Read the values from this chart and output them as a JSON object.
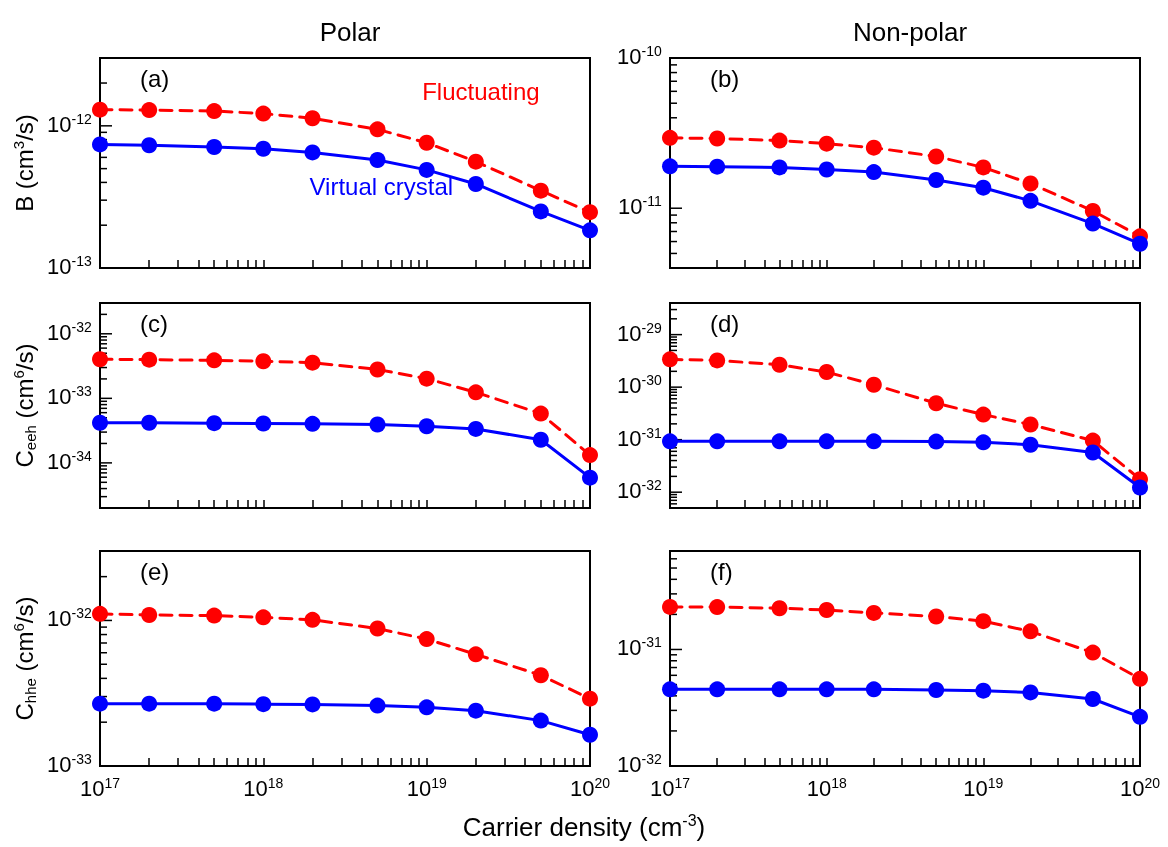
{
  "chart_data": [
    {
      "type": "line",
      "title": "Polar",
      "ylabel": "B (cm$^{3}$/s)",
      "annotations": [
        "(a)"
      ],
      "log": "xy",
      "tick_labels": "y",
      "x": [
        1e+17,
        2e+17,
        5e+17,
        1e+18,
        2e+18,
        5e+18,
        1e+19,
        2e+19,
        5e+19,
        1e+20
      ],
      "series": [
        {
          "name": "Fluctuating",
          "color": "#ff0000",
          "line_style": "dashed",
          "marker": "circle",
          "values": [
            1.3e-12,
            1.29e-12,
            1.27e-12,
            1.22e-12,
            1.13e-12,
            9.45e-13,
            7.6e-13,
            5.6e-13,
            3.5e-13,
            2.47e-13
          ]
        },
        {
          "name": "Virtual crystal",
          "color": "#0000ff",
          "line_style": "solid",
          "marker": "circle",
          "values": [
            7.4e-13,
            7.3e-13,
            7.1e-13,
            6.9e-13,
            6.5e-13,
            5.75e-13,
            4.9e-13,
            3.9e-13,
            2.5e-13,
            1.84e-13
          ]
        }
      ],
      "xlim": [
        1e+17,
        1e+20
      ],
      "ylim": [
        1e-13,
        3e-12
      ],
      "xticks": [
        {
          "value": 1e+17,
          "label": null
        },
        {
          "value": 2e+17,
          "label": null
        },
        {
          "value": 3e+17,
          "label": null
        },
        {
          "value": 4e+17,
          "label": null
        },
        {
          "value": 5e+17,
          "label": null
        },
        {
          "value": 6e+17,
          "label": null
        },
        {
          "value": 7e+17,
          "label": null
        },
        {
          "value": 8e+17,
          "label": null
        },
        {
          "value": 9e+17,
          "label": null
        },
        {
          "value": 1e+18,
          "label": null
        },
        {
          "value": 2e+18,
          "label": null
        },
        {
          "value": 3e+18,
          "label": null
        },
        {
          "value": 4e+18,
          "label": null
        },
        {
          "value": 5e+18,
          "label": null
        },
        {
          "value": 6e+18,
          "label": null
        },
        {
          "value": 7e+18,
          "label": null
        },
        {
          "value": 8e+18,
          "label": null
        },
        {
          "value": 9e+18,
          "label": null
        },
        {
          "value": 1e+19,
          "label": null
        },
        {
          "value": 2e+19,
          "label": null
        },
        {
          "value": 3e+19,
          "label": null
        },
        {
          "value": 4e+19,
          "label": null
        },
        {
          "value": 5e+19,
          "label": null
        },
        {
          "value": 6e+19,
          "label": null
        },
        {
          "value": 7e+19,
          "label": null
        },
        {
          "value": 8e+19,
          "label": null
        },
        {
          "value": 9e+19,
          "label": null
        },
        {
          "value": 1e+20,
          "label": null
        }
      ],
      "yticks": [
        {
          "value": 1e-13,
          "label": "10$^{-13}$"
        },
        {
          "value": 2e-13,
          "label": null
        },
        {
          "value": 3e-13,
          "label": null
        },
        {
          "value": 4e-13,
          "label": null
        },
        {
          "value": 5e-13,
          "label": null
        },
        {
          "value": 6e-13,
          "label": null
        },
        {
          "value": 7e-13,
          "label": null
        },
        {
          "value": 8e-13,
          "label": null
        },
        {
          "value": 9e-13,
          "label": null
        },
        {
          "value": 1e-12,
          "label": "10$^{-12}$"
        },
        {
          "value": 2e-12,
          "label": null
        }
      ]
    },
    {
      "type": "line",
      "title": "Non-polar",
      "annotations": [
        "(b)"
      ],
      "log": "xy",
      "tick_labels": "y",
      "x": [
        1e+17,
        2e+17,
        5e+17,
        1e+18,
        2e+18,
        5e+18,
        1e+19,
        2e+19,
        5e+19,
        1e+20
      ],
      "series": [
        {
          "color": "#ff0000",
          "line_style": "dashed",
          "marker": "circle",
          "values": [
            2.94e-11,
            2.91e-11,
            2.82e-11,
            2.69e-11,
            2.53e-11,
            2.21e-11,
            1.87e-11,
            1.46e-11,
            9.6e-12,
            6.5e-12
          ]
        },
        {
          "color": "#0000ff",
          "line_style": "solid",
          "marker": "circle",
          "values": [
            1.9e-11,
            1.89e-11,
            1.87e-11,
            1.81e-11,
            1.74e-11,
            1.54e-11,
            1.37e-11,
            1.12e-11,
            7.9e-12,
            5.8e-12
          ]
        }
      ],
      "xlim": [
        1e+17,
        1e+20
      ],
      "ylim": [
        4e-12,
        1e-10
      ],
      "xticks": [
        {
          "value": 1e+17,
          "label": null
        },
        {
          "value": 2e+17,
          "label": null
        },
        {
          "value": 3e+17,
          "label": null
        },
        {
          "value": 4e+17,
          "label": null
        },
        {
          "value": 5e+17,
          "label": null
        },
        {
          "value": 6e+17,
          "label": null
        },
        {
          "value": 7e+17,
          "label": null
        },
        {
          "value": 8e+17,
          "label": null
        },
        {
          "value": 9e+17,
          "label": null
        },
        {
          "value": 1e+18,
          "label": null
        },
        {
          "value": 2e+18,
          "label": null
        },
        {
          "value": 3e+18,
          "label": null
        },
        {
          "value": 4e+18,
          "label": null
        },
        {
          "value": 5e+18,
          "label": null
        },
        {
          "value": 6e+18,
          "label": null
        },
        {
          "value": 7e+18,
          "label": null
        },
        {
          "value": 8e+18,
          "label": null
        },
        {
          "value": 9e+18,
          "label": null
        },
        {
          "value": 1e+19,
          "label": null
        },
        {
          "value": 2e+19,
          "label": null
        },
        {
          "value": 3e+19,
          "label": null
        },
        {
          "value": 4e+19,
          "label": null
        },
        {
          "value": 5e+19,
          "label": null
        },
        {
          "value": 6e+19,
          "label": null
        },
        {
          "value": 7e+19,
          "label": null
        },
        {
          "value": 8e+19,
          "label": null
        },
        {
          "value": 9e+19,
          "label": null
        },
        {
          "value": 1e+20,
          "label": null
        }
      ],
      "yticks": [
        {
          "value": 5e-12,
          "label": null
        },
        {
          "value": 6e-12,
          "label": null
        },
        {
          "value": 7e-12,
          "label": null
        },
        {
          "value": 8e-12,
          "label": null
        },
        {
          "value": 9e-12,
          "label": null
        },
        {
          "value": 1e-11,
          "label": "10$^{-11}$"
        },
        {
          "value": 2e-11,
          "label": null
        },
        {
          "value": 3e-11,
          "label": null
        },
        {
          "value": 4e-11,
          "label": null
        },
        {
          "value": 5e-11,
          "label": null
        },
        {
          "value": 6e-11,
          "label": null
        },
        {
          "value": 7e-11,
          "label": null
        },
        {
          "value": 8e-11,
          "label": null
        },
        {
          "value": 9e-11,
          "label": null
        },
        {
          "value": 1e-10,
          "label": "10$^{-10}$"
        }
      ]
    },
    {
      "type": "line",
      "ylabel": "C$_{eeh}$ (cm$^{6}$/s)",
      "annotations": [
        "(c)"
      ],
      "log": "xy",
      "tick_labels": "y",
      "x": [
        1e+17,
        2e+17,
        5e+17,
        1e+18,
        2e+18,
        5e+18,
        1e+19,
        2e+19,
        5e+19,
        1e+20
      ],
      "series": [
        {
          "color": "#ff0000",
          "line_style": "dashed",
          "marker": "circle",
          "values": [
            4.03e-33,
            3.97e-33,
            3.88e-33,
            3.75e-33,
            3.57e-33,
            2.8e-33,
            2.02e-33,
            1.24e-33,
            5.8e-34,
            1.32e-34
          ]
        },
        {
          "color": "#0000ff",
          "line_style": "solid",
          "marker": "circle",
          "values": [
            4.18e-34,
            4.18e-34,
            4.12e-34,
            4.08e-34,
            4.03e-34,
            3.94e-34,
            3.7e-34,
            3.36e-34,
            2.28e-34,
            5.9e-35
          ]
        }
      ],
      "xlim": [
        1e+17,
        1e+20
      ],
      "ylim": [
        2e-35,
        3e-32
      ],
      "xticks": [
        {
          "value": 1e+17,
          "label": null
        },
        {
          "value": 2e+17,
          "label": null
        },
        {
          "value": 3e+17,
          "label": null
        },
        {
          "value": 4e+17,
          "label": null
        },
        {
          "value": 5e+17,
          "label": null
        },
        {
          "value": 6e+17,
          "label": null
        },
        {
          "value": 7e+17,
          "label": null
        },
        {
          "value": 8e+17,
          "label": null
        },
        {
          "value": 9e+17,
          "label": null
        },
        {
          "value": 1e+18,
          "label": null
        },
        {
          "value": 2e+18,
          "label": null
        },
        {
          "value": 3e+18,
          "label": null
        },
        {
          "value": 4e+18,
          "label": null
        },
        {
          "value": 5e+18,
          "label": null
        },
        {
          "value": 6e+18,
          "label": null
        },
        {
          "value": 7e+18,
          "label": null
        },
        {
          "value": 8e+18,
          "label": null
        },
        {
          "value": 9e+18,
          "label": null
        },
        {
          "value": 1e+19,
          "label": null
        },
        {
          "value": 2e+19,
          "label": null
        },
        {
          "value": 3e+19,
          "label": null
        },
        {
          "value": 4e+19,
          "label": null
        },
        {
          "value": 5e+19,
          "label": null
        },
        {
          "value": 6e+19,
          "label": null
        },
        {
          "value": 7e+19,
          "label": null
        },
        {
          "value": 8e+19,
          "label": null
        },
        {
          "value": 9e+19,
          "label": null
        },
        {
          "value": 1e+20,
          "label": null
        }
      ],
      "yticks": [
        {
          "value": 3e-35,
          "label": null
        },
        {
          "value": 4e-35,
          "label": null
        },
        {
          "value": 5e-35,
          "label": null
        },
        {
          "value": 6e-35,
          "label": null
        },
        {
          "value": 7e-35,
          "label": null
        },
        {
          "value": 8e-35,
          "label": null
        },
        {
          "value": 9e-35,
          "label": null
        },
        {
          "value": 1e-34,
          "label": "10$^{-34}$"
        },
        {
          "value": 2e-34,
          "label": null
        },
        {
          "value": 3e-34,
          "label": null
        },
        {
          "value": 4e-34,
          "label": null
        },
        {
          "value": 5e-34,
          "label": null
        },
        {
          "value": 6e-34,
          "label": null
        },
        {
          "value": 7e-34,
          "label": null
        },
        {
          "value": 8e-34,
          "label": null
        },
        {
          "value": 9e-34,
          "label": null
        },
        {
          "value": 1e-33,
          "label": "10$^{-33}$"
        },
        {
          "value": 2e-33,
          "label": null
        },
        {
          "value": 3e-33,
          "label": null
        },
        {
          "value": 4e-33,
          "label": null
        },
        {
          "value": 5e-33,
          "label": null
        },
        {
          "value": 6e-33,
          "label": null
        },
        {
          "value": 7e-33,
          "label": null
        },
        {
          "value": 8e-33,
          "label": null
        },
        {
          "value": 9e-33,
          "label": null
        },
        {
          "value": 1e-32,
          "label": "10$^{-32}$"
        },
        {
          "value": 2e-32,
          "label": null
        }
      ]
    },
    {
      "type": "line",
      "annotations": [
        "(d)"
      ],
      "log": "xy",
      "tick_labels": "y",
      "x": [
        1e+17,
        2e+17,
        5e+17,
        1e+18,
        2e+18,
        5e+18,
        1e+19,
        2e+19,
        5e+19,
        1e+20
      ],
      "series": [
        {
          "color": "#ff0000",
          "line_style": "dashed",
          "marker": "circle",
          "values": [
            3.38e-30,
            3.23e-30,
            2.67e-30,
            1.94e-30,
            1.11e-30,
            4.94e-31,
            3e-31,
            1.94e-31,
            9.6e-32,
            1.77e-32
          ]
        },
        {
          "color": "#0000ff",
          "line_style": "solid",
          "marker": "circle",
          "values": [
            9.3e-32,
            9.3e-32,
            9.3e-32,
            9.3e-32,
            9.3e-32,
            9.2e-32,
            8.9e-32,
            8e-32,
            5.7e-32,
            1.23e-32
          ]
        }
      ],
      "xlim": [
        1e+17,
        1e+20
      ],
      "ylim": [
        5e-33,
        4e-29
      ],
      "xticks": [
        {
          "value": 1e+17,
          "label": null
        },
        {
          "value": 2e+17,
          "label": null
        },
        {
          "value": 3e+17,
          "label": null
        },
        {
          "value": 4e+17,
          "label": null
        },
        {
          "value": 5e+17,
          "label": null
        },
        {
          "value": 6e+17,
          "label": null
        },
        {
          "value": 7e+17,
          "label": null
        },
        {
          "value": 8e+17,
          "label": null
        },
        {
          "value": 9e+17,
          "label": null
        },
        {
          "value": 1e+18,
          "label": null
        },
        {
          "value": 2e+18,
          "label": null
        },
        {
          "value": 3e+18,
          "label": null
        },
        {
          "value": 4e+18,
          "label": null
        },
        {
          "value": 5e+18,
          "label": null
        },
        {
          "value": 6e+18,
          "label": null
        },
        {
          "value": 7e+18,
          "label": null
        },
        {
          "value": 8e+18,
          "label": null
        },
        {
          "value": 9e+18,
          "label": null
        },
        {
          "value": 1e+19,
          "label": null
        },
        {
          "value": 2e+19,
          "label": null
        },
        {
          "value": 3e+19,
          "label": null
        },
        {
          "value": 4e+19,
          "label": null
        },
        {
          "value": 5e+19,
          "label": null
        },
        {
          "value": 6e+19,
          "label": null
        },
        {
          "value": 7e+19,
          "label": null
        },
        {
          "value": 8e+19,
          "label": null
        },
        {
          "value": 9e+19,
          "label": null
        },
        {
          "value": 1e+20,
          "label": null
        }
      ],
      "yticks": [
        {
          "value": 6e-33,
          "label": null
        },
        {
          "value": 7e-33,
          "label": null
        },
        {
          "value": 8e-33,
          "label": null
        },
        {
          "value": 9e-33,
          "label": null
        },
        {
          "value": 1e-32,
          "label": "10$^{-32}$"
        },
        {
          "value": 2e-32,
          "label": null
        },
        {
          "value": 3e-32,
          "label": null
        },
        {
          "value": 4e-32,
          "label": null
        },
        {
          "value": 5e-32,
          "label": null
        },
        {
          "value": 6e-32,
          "label": null
        },
        {
          "value": 7e-32,
          "label": null
        },
        {
          "value": 8e-32,
          "label": null
        },
        {
          "value": 9e-32,
          "label": null
        },
        {
          "value": 1e-31,
          "label": "10$^{-31}$"
        },
        {
          "value": 2e-31,
          "label": null
        },
        {
          "value": 3e-31,
          "label": null
        },
        {
          "value": 4e-31,
          "label": null
        },
        {
          "value": 5e-31,
          "label": null
        },
        {
          "value": 6e-31,
          "label": null
        },
        {
          "value": 7e-31,
          "label": null
        },
        {
          "value": 8e-31,
          "label": null
        },
        {
          "value": 9e-31,
          "label": null
        },
        {
          "value": 1e-30,
          "label": "10$^{-30}$"
        },
        {
          "value": 2e-30,
          "label": null
        },
        {
          "value": 3e-30,
          "label": null
        },
        {
          "value": 4e-30,
          "label": null
        },
        {
          "value": 5e-30,
          "label": null
        },
        {
          "value": 6e-30,
          "label": null
        },
        {
          "value": 7e-30,
          "label": null
        },
        {
          "value": 8e-30,
          "label": null
        },
        {
          "value": 9e-30,
          "label": null
        },
        {
          "value": 1e-29,
          "label": "10$^{-29}$"
        },
        {
          "value": 2e-29,
          "label": null
        },
        {
          "value": 3e-29,
          "label": null
        }
      ]
    },
    {
      "type": "line",
      "ylabel": "C$_{hhe}$ (cm$^{6}$/s)",
      "xlabel": "Carrier density (cm$^{-3}$)",
      "annotations": [
        "(e)"
      ],
      "log": "xy",
      "x": [
        1e+17,
        2e+17,
        5e+17,
        1e+18,
        2e+18,
        5e+18,
        1e+19,
        2e+19,
        5e+19,
        1e+20
      ],
      "series": [
        {
          "color": "#ff0000",
          "line_style": "dashed",
          "marker": "circle",
          "values": [
            1.11e-32,
            1.09e-32,
            1.08e-32,
            1.05e-32,
            1.01e-32,
            8.8e-33,
            7.45e-33,
            5.85e-33,
            4.2e-33,
            2.9e-33
          ]
        },
        {
          "color": "#0000ff",
          "line_style": "solid",
          "marker": "circle",
          "values": [
            2.68e-33,
            2.68e-33,
            2.68e-33,
            2.66e-33,
            2.65e-33,
            2.6e-33,
            2.53e-33,
            2.4e-33,
            2.05e-33,
            1.64e-33
          ]
        }
      ],
      "xlim": [
        1e+17,
        1e+20
      ],
      "ylim": [
        1e-33,
        3e-32
      ],
      "xticks": [
        {
          "value": 1e+17,
          "label": "10$^{17}$"
        },
        {
          "value": 2e+17,
          "label": null
        },
        {
          "value": 3e+17,
          "label": null
        },
        {
          "value": 4e+17,
          "label": null
        },
        {
          "value": 5e+17,
          "label": null
        },
        {
          "value": 6e+17,
          "label": null
        },
        {
          "value": 7e+17,
          "label": null
        },
        {
          "value": 8e+17,
          "label": null
        },
        {
          "value": 9e+17,
          "label": null
        },
        {
          "value": 1e+18,
          "label": "10$^{18}$"
        },
        {
          "value": 2e+18,
          "label": null
        },
        {
          "value": 3e+18,
          "label": null
        },
        {
          "value": 4e+18,
          "label": null
        },
        {
          "value": 5e+18,
          "label": null
        },
        {
          "value": 6e+18,
          "label": null
        },
        {
          "value": 7e+18,
          "label": null
        },
        {
          "value": 8e+18,
          "label": null
        },
        {
          "value": 9e+18,
          "label": null
        },
        {
          "value": 1e+19,
          "label": "10$^{19}$"
        },
        {
          "value": 2e+19,
          "label": null
        },
        {
          "value": 3e+19,
          "label": null
        },
        {
          "value": 4e+19,
          "label": null
        },
        {
          "value": 5e+19,
          "label": null
        },
        {
          "value": 6e+19,
          "label": null
        },
        {
          "value": 7e+19,
          "label": null
        },
        {
          "value": 8e+19,
          "label": null
        },
        {
          "value": 9e+19,
          "label": null
        },
        {
          "value": 1e+20,
          "label": "10$^{20}$"
        }
      ],
      "yticks": [
        {
          "value": 1e-33,
          "label": "10$^{-33}$"
        },
        {
          "value": 2e-33,
          "label": null
        },
        {
          "value": 3e-33,
          "label": null
        },
        {
          "value": 4e-33,
          "label": null
        },
        {
          "value": 5e-33,
          "label": null
        },
        {
          "value": 6e-33,
          "label": null
        },
        {
          "value": 7e-33,
          "label": null
        },
        {
          "value": 8e-33,
          "label": null
        },
        {
          "value": 9e-33,
          "label": null
        },
        {
          "value": 1e-32,
          "label": "10$^{-32}$"
        },
        {
          "value": 2e-32,
          "label": null
        }
      ]
    },
    {
      "type": "line",
      "annotations": [
        "(f)"
      ],
      "log": "xy",
      "x": [
        1e+17,
        2e+17,
        5e+17,
        1e+18,
        2e+18,
        5e+18,
        1e+19,
        2e+19,
        5e+19,
        1e+20
      ],
      "series": [
        {
          "color": "#ff0000",
          "line_style": "dashed",
          "marker": "circle",
          "values": [
            2.32e-31,
            2.31e-31,
            2.26e-31,
            2.18e-31,
            2.06e-31,
            1.92e-31,
            1.75e-31,
            1.43e-31,
            9.4e-32,
            5.6e-32
          ]
        },
        {
          "color": "#0000ff",
          "line_style": "solid",
          "marker": "circle",
          "values": [
            4.55e-32,
            4.55e-32,
            4.55e-32,
            4.55e-32,
            4.55e-32,
            4.49e-32,
            4.43e-32,
            4.28e-32,
            3.76e-32,
            2.64e-32
          ]
        }
      ],
      "xlim": [
        1e+17,
        1e+20
      ],
      "ylim": [
        1e-32,
        7e-31
      ],
      "xticks": [
        {
          "value": 1e+17,
          "label": "10$^{17}$"
        },
        {
          "value": 2e+17,
          "label": null
        },
        {
          "value": 3e+17,
          "label": null
        },
        {
          "value": 4e+17,
          "label": null
        },
        {
          "value": 5e+17,
          "label": null
        },
        {
          "value": 6e+17,
          "label": null
        },
        {
          "value": 7e+17,
          "label": null
        },
        {
          "value": 8e+17,
          "label": null
        },
        {
          "value": 9e+17,
          "label": null
        },
        {
          "value": 1e+18,
          "label": "10$^{18}$"
        },
        {
          "value": 2e+18,
          "label": null
        },
        {
          "value": 3e+18,
          "label": null
        },
        {
          "value": 4e+18,
          "label": null
        },
        {
          "value": 5e+18,
          "label": null
        },
        {
          "value": 6e+18,
          "label": null
        },
        {
          "value": 7e+18,
          "label": null
        },
        {
          "value": 8e+18,
          "label": null
        },
        {
          "value": 9e+18,
          "label": null
        },
        {
          "value": 1e+19,
          "label": "10$^{19}$"
        },
        {
          "value": 2e+19,
          "label": null
        },
        {
          "value": 3e+19,
          "label": null
        },
        {
          "value": 4e+19,
          "label": null
        },
        {
          "value": 5e+19,
          "label": null
        },
        {
          "value": 6e+19,
          "label": null
        },
        {
          "value": 7e+19,
          "label": null
        },
        {
          "value": 8e+19,
          "label": null
        },
        {
          "value": 9e+19,
          "label": null
        },
        {
          "value": 1e+20,
          "label": "10$^{20}$"
        }
      ],
      "yticks": [
        {
          "value": 1e-32,
          "label": "10$^{-32}$"
        },
        {
          "value": 2e-32,
          "label": null
        },
        {
          "value": 3e-32,
          "label": null
        },
        {
          "value": 4e-32,
          "label": null
        },
        {
          "value": 5e-32,
          "label": null
        },
        {
          "value": 6e-32,
          "label": null
        },
        {
          "value": 7e-32,
          "label": null
        },
        {
          "value": 8e-32,
          "label": null
        },
        {
          "value": 9e-32,
          "label": null
        },
        {
          "value": 1e-31,
          "label": "10$^{-31}$"
        },
        {
          "value": 2e-31,
          "label": null
        },
        {
          "value": 3e-31,
          "label": null
        },
        {
          "value": 4e-31,
          "label": null
        },
        {
          "value": 5e-31,
          "label": null
        },
        {
          "value": 6e-31,
          "label": null
        }
      ]
    }
  ]
}
